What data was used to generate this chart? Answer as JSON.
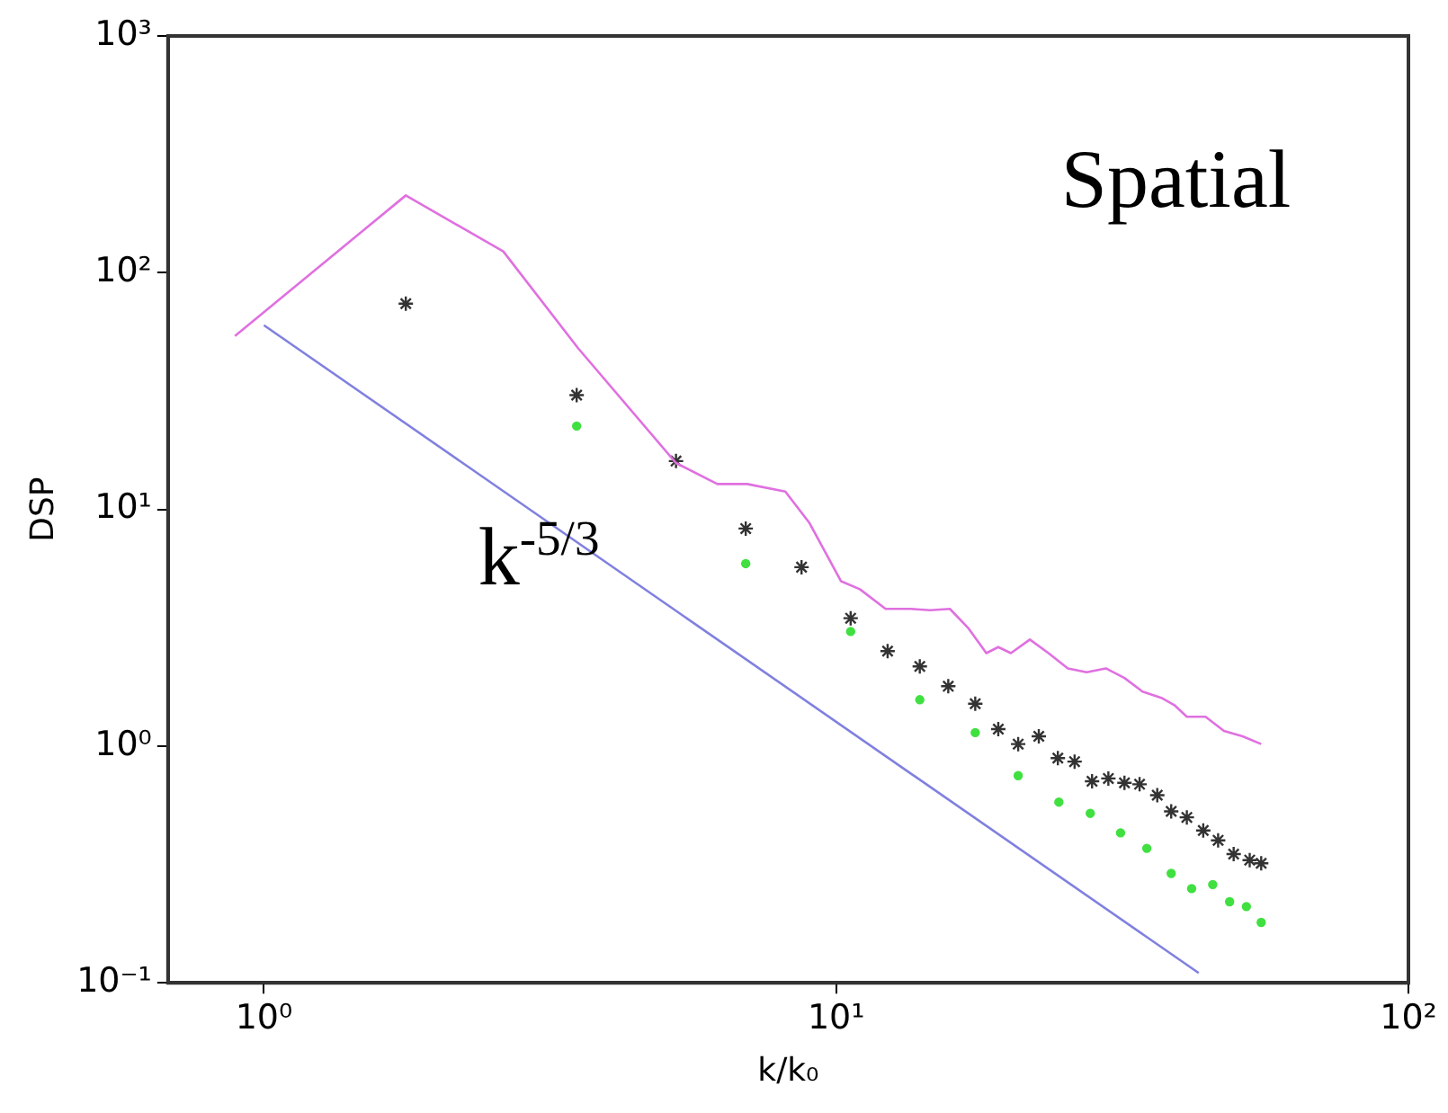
{
  "chart_data": {
    "type": "scatter",
    "xlabel": "k/k₀",
    "ylabel": "DSP",
    "annotations": [
      "Spatial",
      "k$^{-5/3}$"
    ],
    "log": "xy",
    "grid": false,
    "legend": false,
    "xlim": [
      0.68,
      100
    ],
    "ylim": [
      0.1,
      1000
    ],
    "xticks": [
      {
        "value": 1,
        "label": "10⁰"
      },
      {
        "value": 10,
        "label": "10¹"
      },
      {
        "value": 100,
        "label": "10²"
      }
    ],
    "yticks": [
      {
        "value": 0.1,
        "label": "10⁻¹"
      },
      {
        "value": 1,
        "label": "10⁰"
      },
      {
        "value": 10,
        "label": "10¹"
      },
      {
        "value": 100,
        "label": "10²"
      },
      {
        "value": 1000,
        "label": "10³"
      }
    ],
    "series": [
      {
        "type": "line",
        "marker": "none",
        "color": "#e070e0",
        "x": [
          0.89,
          1.77,
          2.62,
          3.54,
          5.25,
          6.2,
          6.99,
          8.15,
          8.97,
          10.2,
          11.0,
          12.2,
          13.5,
          14.6,
          15.8,
          17.0,
          18.3,
          19.2,
          20.2,
          21.8,
          23.5,
          25.4,
          27.4,
          29.6,
          31.9,
          34.3,
          37.0,
          39.0,
          41.0,
          44.2,
          47.6,
          51.3,
          55.3
        ],
        "values": [
          54,
          212,
          123,
          48,
          15.7,
          12.8,
          12.8,
          11.9,
          8.8,
          4.97,
          4.6,
          3.8,
          3.8,
          3.75,
          3.8,
          3.16,
          2.47,
          2.62,
          2.47,
          2.82,
          2.47,
          2.13,
          2.05,
          2.13,
          1.94,
          1.7,
          1.6,
          1.49,
          1.33,
          1.33,
          1.16,
          1.1,
          1.02
        ]
      },
      {
        "type": "line",
        "marker": "none",
        "color": "#8080e0",
        "x": [
          1,
          43
        ],
        "values": [
          60,
          0.11
        ]
      },
      {
        "type": "scatter",
        "marker": "cross",
        "color": "#333333",
        "x": [
          1.77,
          3.52,
          5.25,
          6.95,
          8.7,
          10.6,
          12.3,
          14.0,
          15.7,
          17.5,
          19.2,
          20.8,
          22.6,
          24.4,
          26.1,
          28.0,
          29.9,
          31.9,
          33.9,
          36.4,
          38.5,
          41.0,
          43.8,
          46.5,
          49.5,
          52.8,
          55.3
        ],
        "values": [
          74,
          30.4,
          16.0,
          8.3,
          5.7,
          3.47,
          2.52,
          2.17,
          1.79,
          1.51,
          1.18,
          1.02,
          1.1,
          0.89,
          0.86,
          0.71,
          0.73,
          0.7,
          0.69,
          0.62,
          0.53,
          0.5,
          0.44,
          0.4,
          0.35,
          0.33,
          0.32
        ]
      },
      {
        "type": "scatter",
        "marker": "circle",
        "color": "#40e040",
        "x": [
          3.52,
          6.95,
          10.6,
          14.0,
          17.5,
          20.8,
          24.5,
          27.8,
          31.4,
          34.9,
          38.5,
          41.8,
          45.5,
          48.7,
          52.1,
          55.3
        ],
        "values": [
          22.5,
          5.9,
          3.05,
          1.57,
          1.14,
          0.75,
          0.58,
          0.52,
          0.43,
          0.37,
          0.29,
          0.25,
          0.26,
          0.22,
          0.21,
          0.18
        ]
      }
    ]
  }
}
